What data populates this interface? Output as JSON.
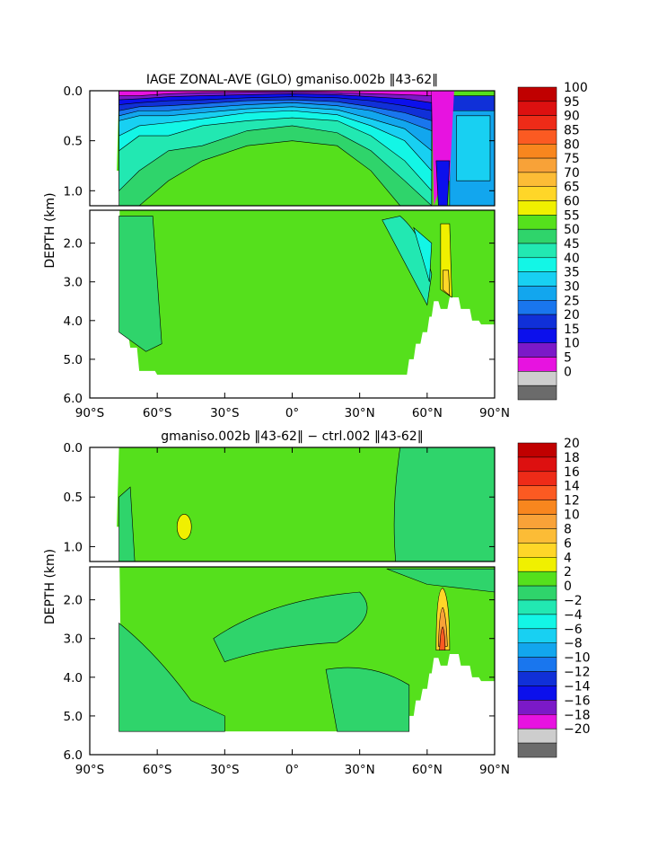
{
  "chart_data": [
    {
      "type": "heatmap",
      "title": "IAGE ZONAL-AVE (GLO) gmaniso.002b ‖43-62‖",
      "ylabel": "DEPTH (km)",
      "xlabel": "",
      "x_ticks": [
        "90°S",
        "60°S",
        "30°S",
        "0°",
        "30°N",
        "60°N",
        "90°N"
      ],
      "y_ticks_upper": [
        "0.0",
        "0.5",
        "1.0"
      ],
      "y_ticks_lower": [
        "2.0",
        "3.0",
        "4.0",
        "5.0",
        "6.0"
      ],
      "xlim": [
        -90,
        90
      ],
      "ylim_km": [
        6.0,
        0.0
      ],
      "split_depth_km": 1.15,
      "colorbar": {
        "labels": [
          "100",
          "95",
          "90",
          "85",
          "80",
          "75",
          "70",
          "65",
          "60",
          "55",
          "50",
          "45",
          "40",
          "35",
          "30",
          "25",
          "20",
          "15",
          "10",
          "5",
          "0"
        ],
        "colors": [
          "#c00000",
          "#dd1010",
          "#ee2b18",
          "#fb5a22",
          "#f8861e",
          "#f8a238",
          "#fcbc36",
          "#ffd628",
          "#f0f000",
          "#55e01c",
          "#2fd46b",
          "#22e8b2",
          "#13f6e6",
          "#18d0f2",
          "#12a6ee",
          "#1976ee",
          "#1030d8",
          "#0c10ec",
          "#7b19c8",
          "#e713e0",
          "#cdcdcd",
          "#6b6b6b"
        ]
      },
      "contour_levels": [
        0,
        5,
        10,
        15,
        20,
        25,
        30,
        35,
        40,
        45,
        50,
        55,
        60,
        65,
        70,
        75,
        80,
        85,
        90,
        95,
        100
      ]
    },
    {
      "type": "heatmap",
      "title": "gmaniso.002b ‖43-62‖ − ctrl.002 ‖43-62‖",
      "ylabel": "DEPTH (km)",
      "xlabel": "",
      "x_ticks": [
        "90°S",
        "60°S",
        "30°S",
        "0°",
        "30°N",
        "60°N",
        "90°N"
      ],
      "y_ticks_upper": [
        "0.0",
        "0.5",
        "1.0"
      ],
      "y_ticks_lower": [
        "2.0",
        "3.0",
        "4.0",
        "5.0",
        "6.0"
      ],
      "xlim": [
        -90,
        90
      ],
      "ylim_km": [
        6.0,
        0.0
      ],
      "split_depth_km": 1.15,
      "colorbar": {
        "labels": [
          "20",
          "18",
          "16",
          "14",
          "12",
          "10",
          "8",
          "6",
          "4",
          "2",
          "0",
          "−2",
          "−4",
          "−6",
          "−8",
          "−10",
          "−12",
          "−14",
          "−16",
          "−18",
          "−20"
        ],
        "colors": [
          "#c00000",
          "#dd1010",
          "#ee2b18",
          "#fb5a22",
          "#f8861e",
          "#f8a238",
          "#fcbc36",
          "#ffd628",
          "#f0f000",
          "#55e01c",
          "#2fd46b",
          "#22e8b2",
          "#13f6e6",
          "#18d0f2",
          "#12a6ee",
          "#1976ee",
          "#1030d8",
          "#0c10ec",
          "#7b19c8",
          "#e713e0",
          "#cdcdcd",
          "#6b6b6b"
        ]
      },
      "contour_levels": [
        -20,
        -18,
        -16,
        -14,
        -12,
        -10,
        -8,
        -6,
        -4,
        -2,
        0,
        2,
        4,
        6,
        8,
        10,
        12,
        14,
        16,
        18,
        20
      ]
    }
  ]
}
